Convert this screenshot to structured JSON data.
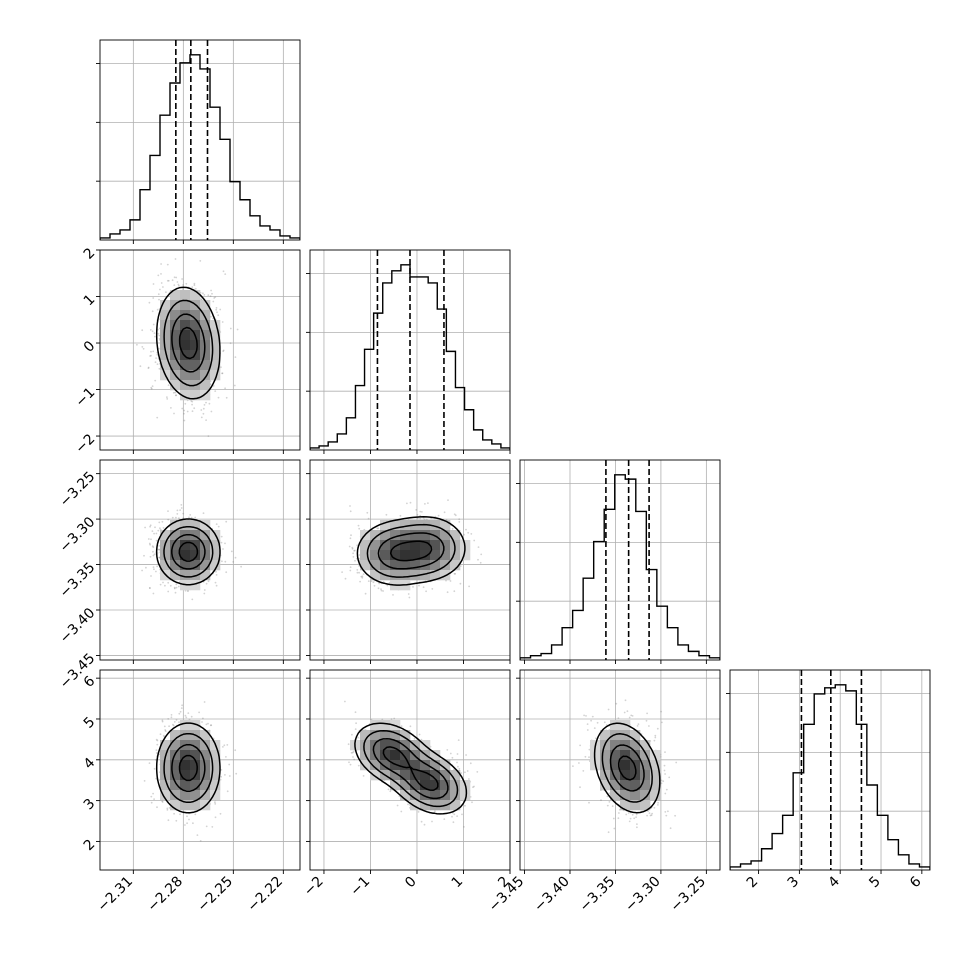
{
  "chart_data": {
    "type": "corner",
    "title": "",
    "colors": {
      "line": "#000000",
      "grid": "#b0b0b0",
      "scatter": "#808080"
    },
    "grid": true,
    "dims": [
      {
        "range": [
          -2.33,
          -2.21
        ],
        "ticks": [
          "-2.31",
          "-2.28",
          "-2.25",
          "-2.22"
        ],
        "quantiles": [
          -2.2845,
          -2.2755,
          -2.2655
        ],
        "hist_peak": 92,
        "hist_counts": [
          1,
          3,
          5,
          10,
          25,
          42,
          62,
          78,
          88,
          92,
          85,
          66,
          50,
          29,
          20,
          12,
          7,
          5,
          2,
          1
        ]
      },
      {
        "range": [
          -2.3,
          2.0
        ],
        "ticks": [
          "-2",
          "-1",
          "0",
          "1",
          "2"
        ],
        "quantiles": [
          -0.85,
          -0.15,
          0.58
        ],
        "hist_peak": 92,
        "hist_counts": [
          1,
          2,
          4,
          8,
          16,
          32,
          50,
          68,
          83,
          89,
          92,
          86,
          86,
          83,
          70,
          49,
          31,
          20,
          10,
          5,
          3,
          1
        ]
      },
      {
        "range": [
          -3.455,
          -3.235
        ],
        "ticks": [
          "-3.45",
          "-3.40",
          "-3.35",
          "-3.30",
          "-3.25"
        ],
        "quantiles": [
          -3.3605,
          -3.3355,
          -3.313
        ],
        "hist_peak": 86,
        "hist_counts": [
          1,
          2,
          3,
          7,
          15,
          23,
          38,
          55,
          70,
          86,
          84,
          69,
          42,
          25,
          15,
          7,
          4,
          2,
          1
        ]
      },
      {
        "range": [
          1.3,
          6.2
        ],
        "ticks": [
          "2",
          "3",
          "4",
          "5",
          "6"
        ],
        "quantiles": [
          3.05,
          3.77,
          4.52
        ],
        "hist_peak": 61,
        "hist_counts": [
          1,
          2,
          3,
          7,
          12,
          18,
          32,
          48,
          58,
          60,
          61,
          59,
          48,
          28,
          18,
          10,
          5,
          2,
          1
        ]
      }
    ],
    "pairs": [
      {
        "xi": 0,
        "yi": 1,
        "rho": -0.15,
        "modes": [
          {
            "mx": -2.277,
            "my": 0.0,
            "sx": 0.0095,
            "sy": 0.6,
            "w": 1
          }
        ]
      },
      {
        "xi": 0,
        "yi": 2,
        "rho": 0.0,
        "modes": [
          {
            "mx": -2.277,
            "my": -3.336,
            "sx": 0.0095,
            "sy": 0.018,
            "w": 1
          }
        ]
      },
      {
        "xi": 1,
        "yi": 2,
        "rho": 0.0,
        "modes": [
          {
            "mx": -0.5,
            "my": -3.338,
            "sx": 0.42,
            "sy": 0.018,
            "w": 0.5
          },
          {
            "mx": 0.25,
            "my": -3.332,
            "sx": 0.42,
            "sy": 0.018,
            "w": 0.5
          }
        ]
      },
      {
        "xi": 0,
        "yi": 3,
        "rho": 0.0,
        "modes": [
          {
            "mx": -2.277,
            "my": 3.8,
            "sx": 0.0095,
            "sy": 0.55,
            "w": 1
          }
        ]
      },
      {
        "xi": 1,
        "yi": 3,
        "rho": -0.3,
        "modes": [
          {
            "mx": -0.55,
            "my": 4.15,
            "sx": 0.4,
            "sy": 0.38,
            "w": 0.5
          },
          {
            "mx": 0.28,
            "my": 3.42,
            "sx": 0.4,
            "sy": 0.38,
            "w": 0.5
          }
        ]
      },
      {
        "xi": 2,
        "yi": 3,
        "rho": -0.3,
        "modes": [
          {
            "mx": -3.337,
            "my": 3.8,
            "sx": 0.018,
            "sy": 0.55,
            "w": 1
          }
        ]
      }
    ]
  }
}
